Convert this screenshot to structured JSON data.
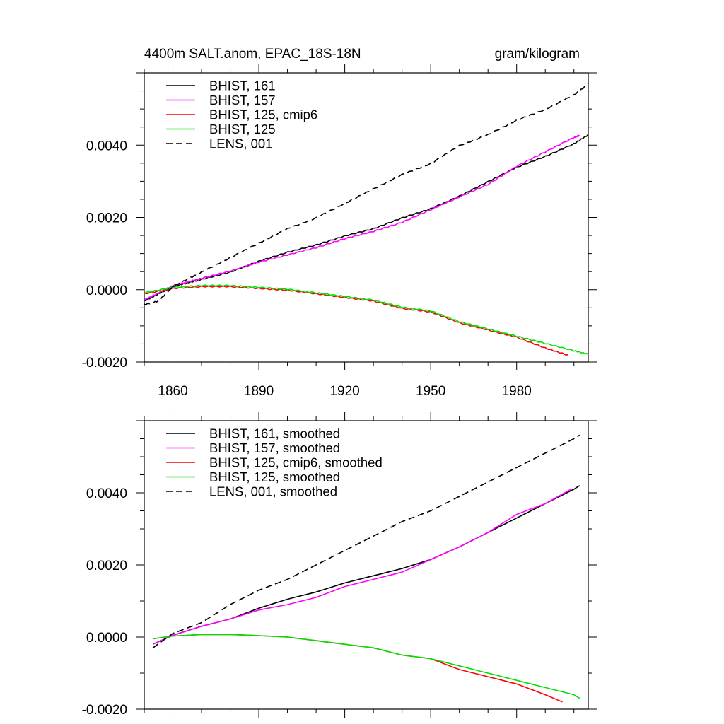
{
  "figure": {
    "title": "4400m SALT.anom, EPAC_18S-18N",
    "units": "gram/kilogram"
  },
  "chart_data": [
    {
      "type": "line",
      "title": "4400m SALT.anom, EPAC_18S-18N",
      "units": "gram/kilogram",
      "xlim": [
        1850,
        2005
      ],
      "ylim": [
        -0.002,
        0.006
      ],
      "x_ticks": [
        1860,
        1890,
        1920,
        1950,
        1980
      ],
      "x_tick_labels": [
        "1860",
        "1890",
        "1920",
        "1950",
        "1980"
      ],
      "y_ticks": [
        -0.002,
        0.0,
        0.002,
        0.004
      ],
      "y_tick_labels": [
        "-0.0020",
        "0.0000",
        "0.0020",
        "0.0040"
      ],
      "grid": false,
      "legend": "top-left",
      "series": [
        {
          "name": "BHIST, 161",
          "color": "#000000",
          "dash": "solid",
          "x": [
            1850,
            1855,
            1860,
            1865,
            1870,
            1880,
            1890,
            1900,
            1910,
            1920,
            1930,
            1940,
            1950,
            1960,
            1970,
            1980,
            1990,
            2000,
            2005
          ],
          "values": [
            -0.0003,
            -0.0001,
            0.0001,
            0.0002,
            0.0003,
            0.0005,
            0.0008,
            0.00105,
            0.00125,
            0.0015,
            0.0017,
            0.002,
            0.00225,
            0.0026,
            0.003,
            0.0034,
            0.0037,
            0.00405,
            0.0043
          ]
        },
        {
          "name": "BHIST, 157",
          "color": "#ff00ff",
          "dash": "solid",
          "x": [
            1850,
            1855,
            1860,
            1865,
            1870,
            1880,
            1890,
            1900,
            1910,
            1920,
            1930,
            1940,
            1950,
            1960,
            1970,
            1980,
            1990,
            2000,
            2002
          ],
          "values": [
            -0.0003,
            -0.0001,
            0.0001,
            0.0002,
            0.0003,
            0.0005,
            0.00075,
            0.00095,
            0.00115,
            0.0014,
            0.0016,
            0.00185,
            0.0022,
            0.00255,
            0.0029,
            0.0034,
            0.0038,
            0.0042,
            0.00425
          ]
        },
        {
          "name": "BHIST, 125, cmip6",
          "color": "#ff0000",
          "dash": "solid",
          "x": [
            1850,
            1860,
            1870,
            1880,
            1890,
            1900,
            1910,
            1920,
            1930,
            1940,
            1950,
            1960,
            1970,
            1980,
            1990,
            1998
          ],
          "values": [
            -0.0001,
            5e-05,
            0.0001,
            0.0001,
            5e-05,
            0.0,
            -0.0001,
            -0.0002,
            -0.0003,
            -0.0005,
            -0.0006,
            -0.0009,
            -0.0011,
            -0.0013,
            -0.0016,
            -0.0018
          ]
        },
        {
          "name": "BHIST, 125",
          "color": "#00e000",
          "dash": "solid",
          "x": [
            1850,
            1860,
            1870,
            1880,
            1890,
            1900,
            1910,
            1920,
            1930,
            1940,
            1950,
            1960,
            1970,
            1980,
            1990,
            2000,
            2005
          ],
          "values": [
            -0.0001,
            5e-05,
            0.0001,
            0.0001,
            5e-05,
            0.0,
            -0.0001,
            -0.0002,
            -0.0003,
            -0.0005,
            -0.0006,
            -0.0009,
            -0.0011,
            -0.0013,
            -0.0015,
            -0.0017,
            -0.0018
          ]
        },
        {
          "name": "LENS, 001",
          "color": "#000000",
          "dash": "dashed",
          "x": [
            1850,
            1855,
            1860,
            1865,
            1870,
            1880,
            1890,
            1900,
            1910,
            1920,
            1930,
            1940,
            1950,
            1960,
            1970,
            1980,
            1990,
            2000,
            2005
          ],
          "values": [
            -0.0004,
            -0.0003,
            0.0001,
            0.0003,
            0.0005,
            0.0009,
            0.0013,
            0.0017,
            0.002,
            0.0024,
            0.0028,
            0.0032,
            0.0035,
            0.004,
            0.0043,
            0.0047,
            0.005,
            0.0054,
            0.0057
          ]
        }
      ]
    },
    {
      "type": "line",
      "xlim": [
        1850,
        2005
      ],
      "ylim": [
        -0.002,
        0.006
      ],
      "x_ticks": [
        1860,
        1890,
        1920,
        1950,
        1980
      ],
      "x_tick_labels": [],
      "y_ticks": [
        -0.002,
        0.0,
        0.002,
        0.004
      ],
      "y_tick_labels": [
        "-0.0020",
        "0.0000",
        "0.0020",
        "0.0040"
      ],
      "grid": false,
      "legend": "top-left",
      "series": [
        {
          "name": "BHIST, 161, smoothed",
          "color": "#000000",
          "dash": "solid",
          "x": [
            1853,
            1860,
            1870,
            1880,
            1890,
            1900,
            1910,
            1920,
            1930,
            1940,
            1950,
            1960,
            1970,
            1980,
            1990,
            2000,
            2002
          ],
          "values": [
            -0.0002,
            5e-05,
            0.0003,
            0.0005,
            0.0008,
            0.00105,
            0.00125,
            0.0015,
            0.0017,
            0.0019,
            0.00215,
            0.0025,
            0.0029,
            0.0033,
            0.0037,
            0.0041,
            0.0042
          ]
        },
        {
          "name": "BHIST, 157, smoothed",
          "color": "#ff00ff",
          "dash": "solid",
          "x": [
            1853,
            1860,
            1870,
            1880,
            1890,
            1900,
            1910,
            1920,
            1930,
            1940,
            1950,
            1960,
            1970,
            1980,
            1990,
            1999
          ],
          "values": [
            -0.0002,
            5e-05,
            0.0003,
            0.0005,
            0.00075,
            0.0009,
            0.0011,
            0.0014,
            0.0016,
            0.0018,
            0.00215,
            0.0025,
            0.0029,
            0.0034,
            0.0037,
            0.0041
          ]
        },
        {
          "name": "BHIST, 125, cmip6, smoothed",
          "color": "#ff0000",
          "dash": "solid",
          "x": [
            1853,
            1860,
            1870,
            1880,
            1890,
            1900,
            1910,
            1920,
            1930,
            1940,
            1950,
            1960,
            1970,
            1980,
            1990,
            1996
          ],
          "values": [
            -5e-05,
            3e-05,
            7e-05,
            7e-05,
            4e-05,
            0.0,
            -0.0001,
            -0.0002,
            -0.0003,
            -0.0005,
            -0.0006,
            -0.0009,
            -0.0011,
            -0.0013,
            -0.0016,
            -0.0018
          ]
        },
        {
          "name": "BHIST, 125, smoothed",
          "color": "#00e000",
          "dash": "solid",
          "x": [
            1853,
            1860,
            1870,
            1880,
            1890,
            1900,
            1910,
            1920,
            1930,
            1940,
            1950,
            1960,
            1970,
            1980,
            1990,
            2000,
            2002
          ],
          "values": [
            -5e-05,
            3e-05,
            7e-05,
            7e-05,
            4e-05,
            0.0,
            -0.0001,
            -0.0002,
            -0.0003,
            -0.0005,
            -0.0006,
            -0.0008,
            -0.001,
            -0.0012,
            -0.0014,
            -0.0016,
            -0.0017
          ]
        },
        {
          "name": "LENS, 001, smoothed",
          "color": "#000000",
          "dash": "dashed",
          "x": [
            1853,
            1860,
            1870,
            1880,
            1890,
            1900,
            1910,
            1920,
            1930,
            1940,
            1950,
            1960,
            1970,
            1980,
            1990,
            2000,
            2002
          ],
          "values": [
            -0.0003,
            0.0001,
            0.0004,
            0.0009,
            0.0013,
            0.0016,
            0.002,
            0.0024,
            0.0028,
            0.0032,
            0.0035,
            0.0039,
            0.0043,
            0.0047,
            0.0051,
            0.0055,
            0.0056
          ]
        }
      ]
    }
  ]
}
